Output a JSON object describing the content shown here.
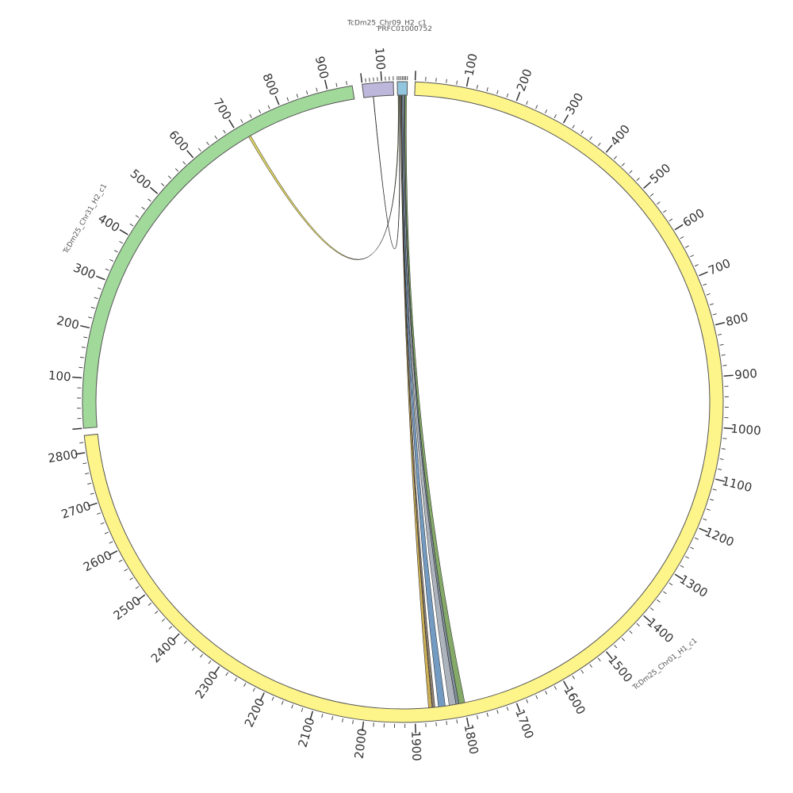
{
  "segments": [
    {
      "name": "TcDm25_Chr01_H1_c1",
      "length": 2833,
      "color": "#FDF48A"
    },
    {
      "name": "TcDm25_Chr31_H2_c1",
      "length": 950,
      "color": "#A1D99B"
    },
    {
      "name": "TcDm25_Chr09_H2_c1",
      "length": 160,
      "color": "#BCB7DB"
    },
    {
      "name": "PRFC01000752",
      "length": 30,
      "color": "#92C5DE"
    }
  ],
  "major_tick_step": 100,
  "minor_tick_step": 20,
  "links": [
    {
      "a": {
        "seg": 3,
        "start": 2,
        "end": 4
      },
      "b": {
        "seg": 1,
        "start": 716,
        "end": 721
      },
      "color": "#D4C84A"
    },
    {
      "a": {
        "seg": 3,
        "start": 5,
        "end": 7
      },
      "b": {
        "seg": 2,
        "start": 50,
        "end": 52
      },
      "color": "#6A8F5E"
    },
    {
      "a": {
        "seg": 3,
        "start": 9,
        "end": 13
      },
      "b": {
        "seg": 0,
        "start": 1865,
        "end": 1872
      },
      "color": "#C6A33A"
    },
    {
      "a": {
        "seg": 3,
        "start": 10,
        "end": 13
      },
      "b": {
        "seg": 0,
        "start": 1859,
        "end": 1864
      },
      "color": "#7A6B5A"
    },
    {
      "a": {
        "seg": 3,
        "start": 13,
        "end": 17
      },
      "b": {
        "seg": 0,
        "start": 1838,
        "end": 1852
      },
      "color": "#5B88B5"
    },
    {
      "a": {
        "seg": 3,
        "start": 16,
        "end": 21
      },
      "b": {
        "seg": 0,
        "start": 1816,
        "end": 1830
      },
      "color": "#9EA6B0"
    },
    {
      "a": {
        "seg": 3,
        "start": 20,
        "end": 24
      },
      "b": {
        "seg": 0,
        "start": 1810,
        "end": 1816
      },
      "color": "#6B7A8A"
    },
    {
      "a": {
        "seg": 3,
        "start": 23,
        "end": 28
      },
      "b": {
        "seg": 0,
        "start": 1798,
        "end": 1810
      },
      "color": "#6E9A4E"
    }
  ]
}
